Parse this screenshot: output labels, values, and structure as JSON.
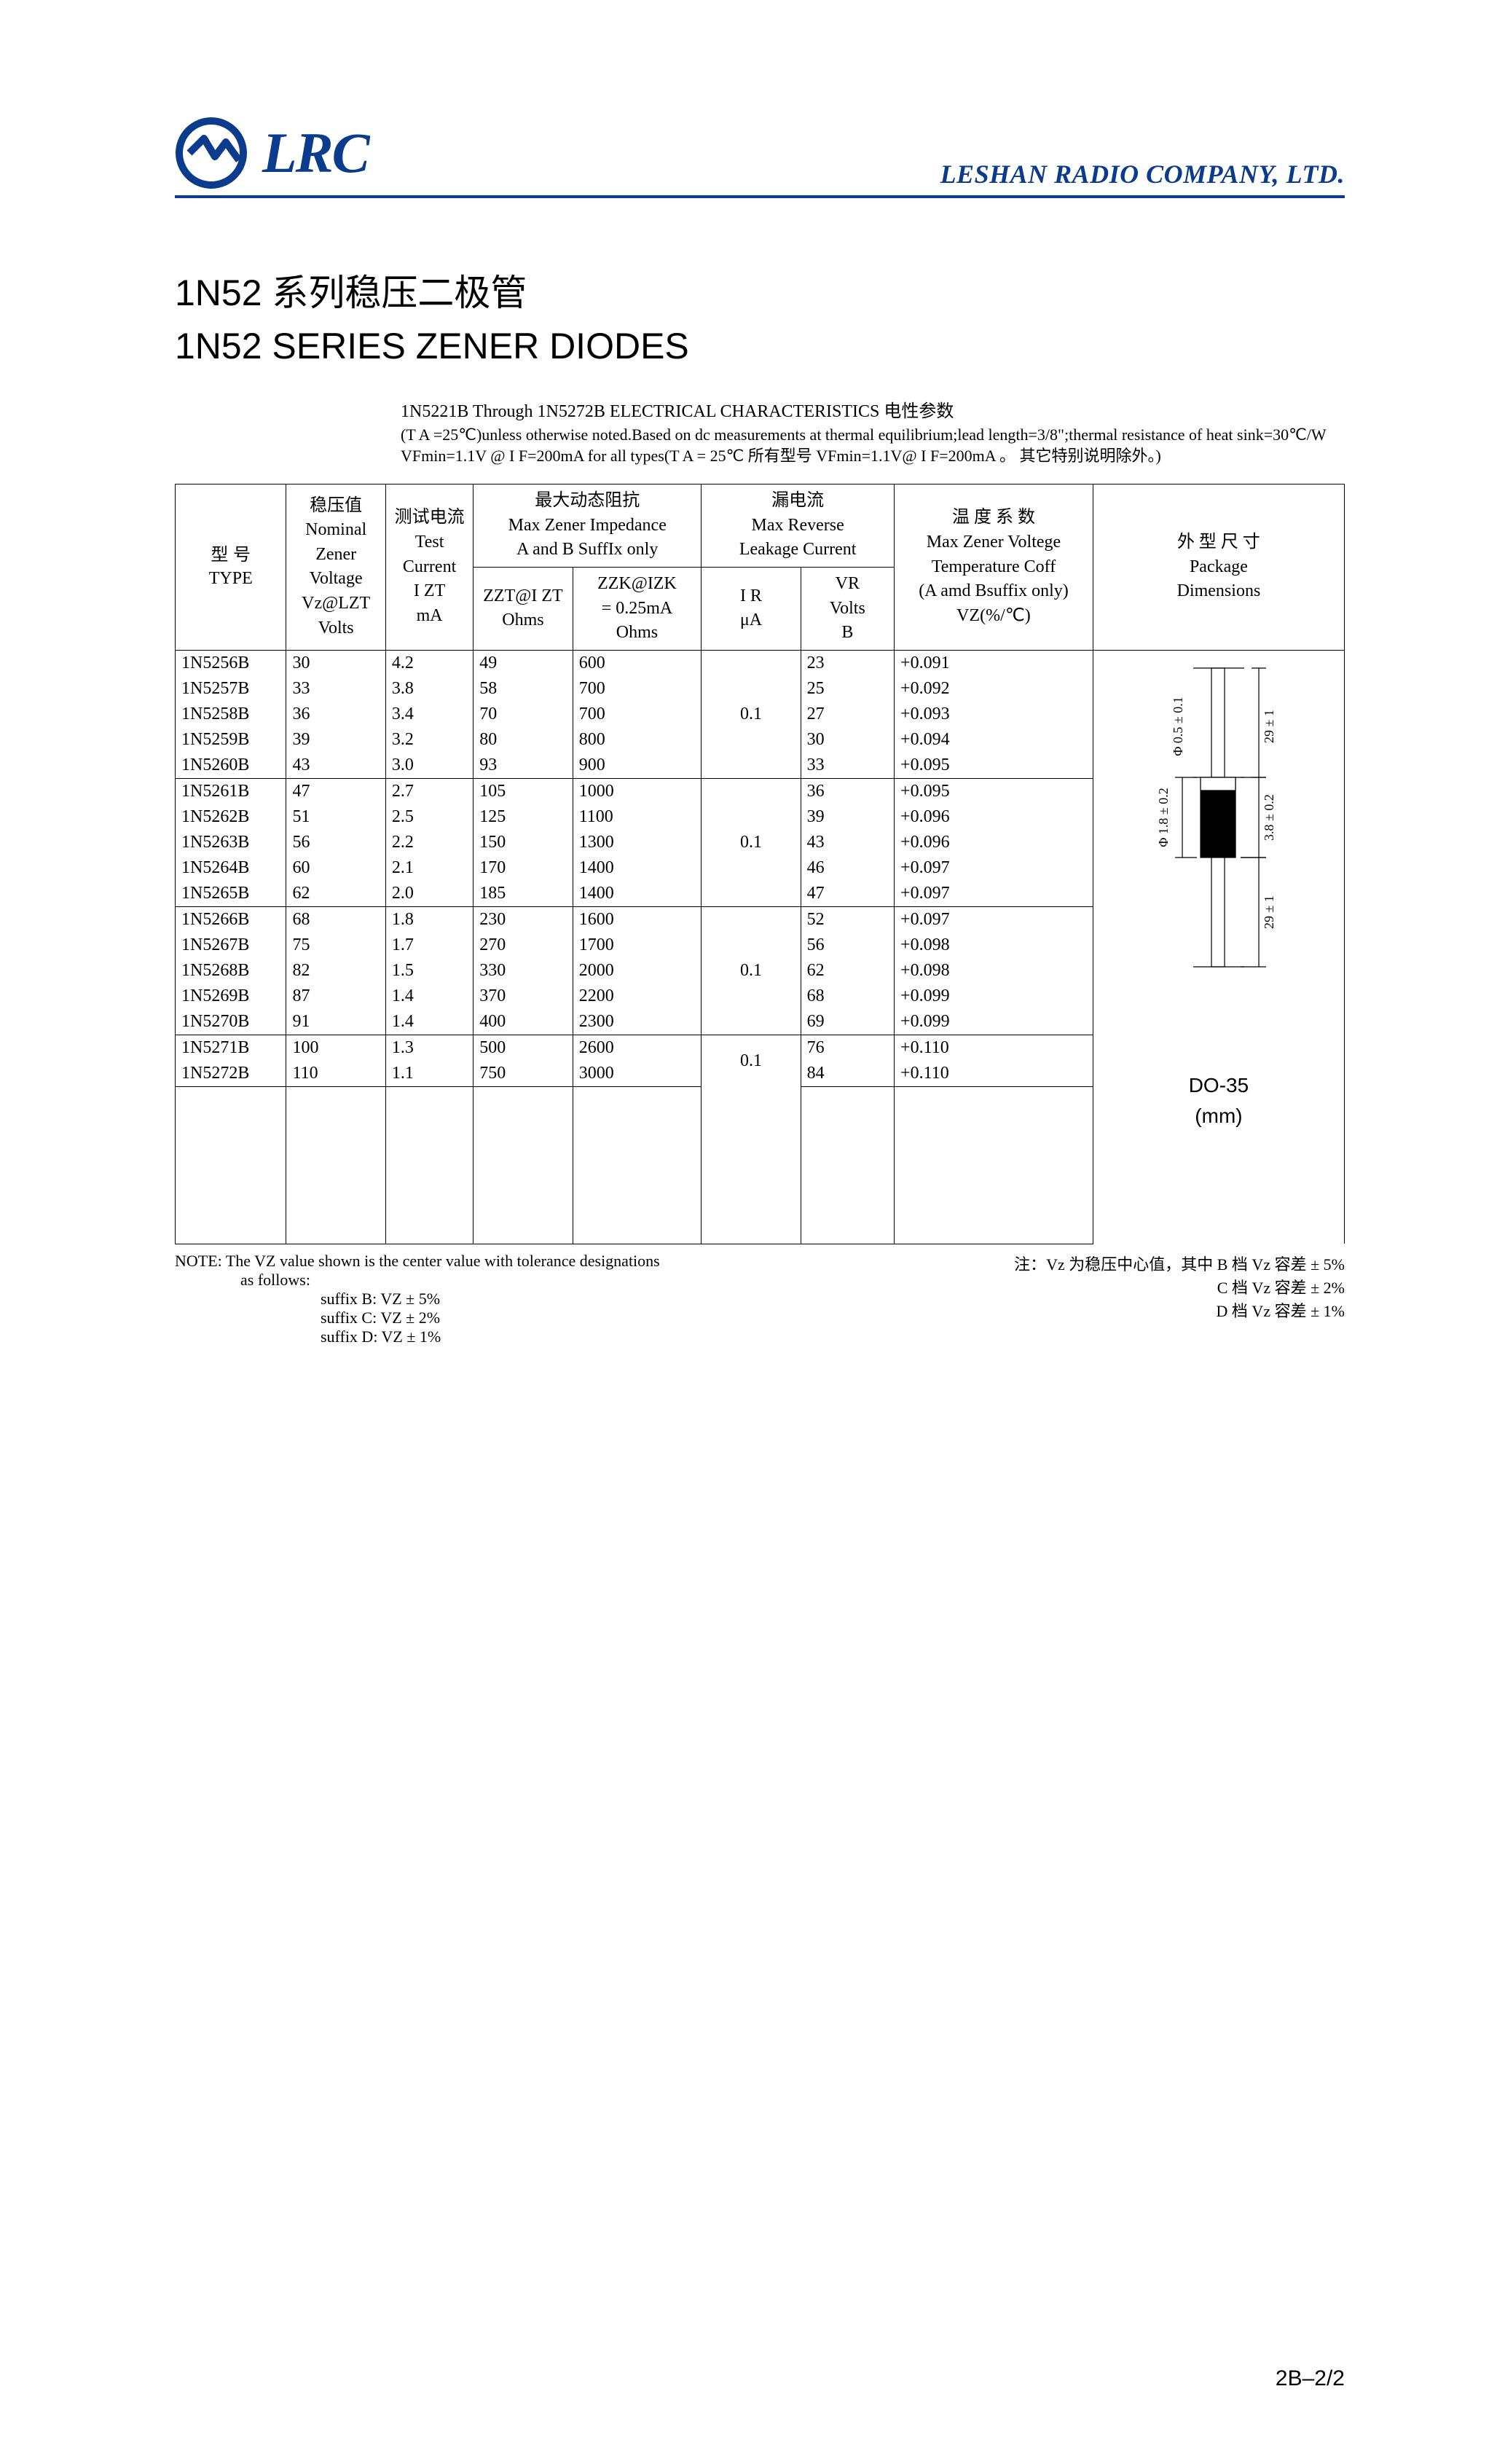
{
  "brand": {
    "text": "LRC",
    "color": "#0a3b8c"
  },
  "company": "LESHAN RADIO COMPANY, LTD.",
  "title_cn": "1N52 系列稳压二极管",
  "title_en": "1N52 SERIES ZENER DIODES",
  "char_heading": "1N5221B Through 1N5272B ELECTRICAL CHARACTERISTICS 电性参数",
  "char_note": "(T A =25℃)unless otherwise noted.Based on dc measurements at thermal equilibrium;lead length=3/8\";thermal resistance of heat sink=30℃/W  VFmin=1.1V @ I F=200mA for all types(T A = 25℃ 所有型号 VFmin=1.1V@ I F=200mA 。 其它特别说明除外。)",
  "headers": {
    "type": {
      "cn": "型  号",
      "en": "TYPE"
    },
    "vz": {
      "cn": "稳压值",
      "en1": "Nominal",
      "en2": "Zener",
      "en3": "Voltage",
      "sym": "Vz@LZT",
      "unit": "Volts"
    },
    "izt": {
      "cn": "测试电流",
      "en1": "Test",
      "en2": "Current",
      "sym": "I ZT",
      "unit": "mA"
    },
    "imp": {
      "cn": "最大动态阻抗",
      "en1": "Max Zener Impedance",
      "en2": "A and B SuffIx only"
    },
    "zzt": {
      "sym": "ZZT@I ZT",
      "unit": "Ohms"
    },
    "zzk": {
      "sym": "ZZK@IZK",
      "eq": "= 0.25mA",
      "unit": "Ohms"
    },
    "leak": {
      "cn": "漏电流",
      "en1": "Max Reverse",
      "en2": "Leakage Current"
    },
    "ir": {
      "sym": "I R",
      "unit": "μA"
    },
    "vr": {
      "sym": "VR",
      "en": "Volts",
      "unit": "B"
    },
    "tc": {
      "cn": "温 度 系 数",
      "en1": "Max Zener Voltege",
      "en2": "Temperature Coff",
      "en3": "(A amd Bsuffix only)",
      "sym": "VZ(%/℃)"
    },
    "pkg": {
      "cn": "外 型 尺 寸",
      "en1": "Package",
      "en2": "Dimensions"
    }
  },
  "groups": [
    {
      "ir": "0.1",
      "rows": [
        {
          "type": "1N5256B",
          "vz": "30",
          "izt": "4.2",
          "zzt": "49",
          "zzk": "600",
          "vr": "23",
          "tc": "+0.091"
        },
        {
          "type": "1N5257B",
          "vz": "33",
          "izt": "3.8",
          "zzt": "58",
          "zzk": "700",
          "vr": "25",
          "tc": "+0.092"
        },
        {
          "type": "1N5258B",
          "vz": "36",
          "izt": "3.4",
          "zzt": "70",
          "zzk": "700",
          "vr": "27",
          "tc": "+0.093"
        },
        {
          "type": "1N5259B",
          "vz": "39",
          "izt": "3.2",
          "zzt": "80",
          "zzk": "800",
          "vr": "30",
          "tc": "+0.094"
        },
        {
          "type": "1N5260B",
          "vz": "43",
          "izt": "3.0",
          "zzt": "93",
          "zzk": "900",
          "vr": "33",
          "tc": "+0.095"
        }
      ]
    },
    {
      "ir": "0.1",
      "rows": [
        {
          "type": "1N5261B",
          "vz": "47",
          "izt": "2.7",
          "zzt": "105",
          "zzk": "1000",
          "vr": "36",
          "tc": "+0.095"
        },
        {
          "type": "1N5262B",
          "vz": "51",
          "izt": "2.5",
          "zzt": "125",
          "zzk": "1100",
          "vr": "39",
          "tc": "+0.096"
        },
        {
          "type": "1N5263B",
          "vz": "56",
          "izt": "2.2",
          "zzt": "150",
          "zzk": "1300",
          "vr": "43",
          "tc": "+0.096"
        },
        {
          "type": "1N5264B",
          "vz": "60",
          "izt": "2.1",
          "zzt": "170",
          "zzk": "1400",
          "vr": "46",
          "tc": "+0.097"
        },
        {
          "type": "1N5265B",
          "vz": "62",
          "izt": "2.0",
          "zzt": "185",
          "zzk": "1400",
          "vr": "47",
          "tc": "+0.097"
        }
      ]
    },
    {
      "ir": "0.1",
      "rows": [
        {
          "type": "1N5266B",
          "vz": "68",
          "izt": "1.8",
          "zzt": "230",
          "zzk": "1600",
          "vr": "52",
          "tc": "+0.097"
        },
        {
          "type": "1N5267B",
          "vz": "75",
          "izt": "1.7",
          "zzt": "270",
          "zzk": "1700",
          "vr": "56",
          "tc": "+0.098"
        },
        {
          "type": "1N5268B",
          "vz": "82",
          "izt": "1.5",
          "zzt": "330",
          "zzk": "2000",
          "vr": "62",
          "tc": "+0.098"
        },
        {
          "type": "1N5269B",
          "vz": "87",
          "izt": "1.4",
          "zzt": "370",
          "zzk": "2200",
          "vr": "68",
          "tc": "+0.099"
        },
        {
          "type": "1N5270B",
          "vz": "91",
          "izt": "1.4",
          "zzt": "400",
          "zzk": "2300",
          "vr": "69",
          "tc": "+0.099"
        }
      ]
    },
    {
      "ir": "0.1",
      "rows": [
        {
          "type": "1N5271B",
          "vz": "100",
          "izt": "1.3",
          "zzt": "500",
          "zzk": "2600",
          "vr": "76",
          "tc": "+0.110"
        },
        {
          "type": "1N5272B",
          "vz": "110",
          "izt": "1.1",
          "zzt": "750",
          "zzk": "3000",
          "vr": "84",
          "tc": "+0.110"
        }
      ]
    }
  ],
  "pkg_dims": {
    "lead_dia": "Φ 0.5 ± 0.1",
    "lead_len": "29 ± 1",
    "body_dia": "Φ 1.8 ± 0.2",
    "body_len": "3.8 ± 0.2",
    "lead_len2": "29 ± 1",
    "name": "DO-35",
    "unit": "(mm)"
  },
  "note_left": {
    "l1": "NOTE: The VZ value shown is the center value with tolerance designations",
    "l2": "as  follows:",
    "l3": "suffix B:  VZ ± 5%",
    "l4": "suffix C:  VZ ± 2%",
    "l5": "suffix D:  VZ ± 1%"
  },
  "note_right": {
    "l1": "注：Vz 为稳压中心值，其中 B 档 Vz 容差 ± 5%",
    "l2": "C 档 Vz 容差 ± 2%",
    "l3": "D 档 Vz 容差 ± 1%"
  },
  "page": "2B–2/2"
}
